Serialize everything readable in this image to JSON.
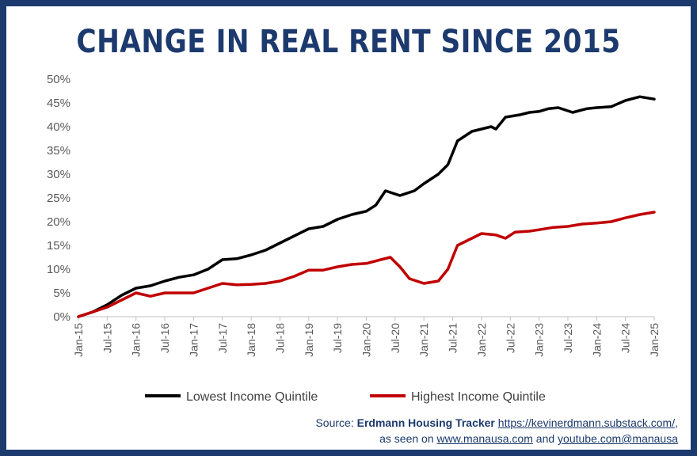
{
  "chart_data": {
    "type": "line",
    "title": "CHANGE IN REAL RENT SINCE 2015",
    "xlabel": "",
    "ylabel": "",
    "x_ticks": [
      "Jan-15",
      "Jul-15",
      "Jan-16",
      "Jul-16",
      "Jan-17",
      "Jul-17",
      "Jan-18",
      "Jul-18",
      "Jan-19",
      "Jul-19",
      "Jan-20",
      "Jul-20",
      "Jan-21",
      "Jul-21",
      "Jan-22",
      "Jul-22",
      "Jan-23",
      "Jul-23",
      "Jan-24",
      "Jul-24",
      "Jan-25"
    ],
    "y_ticks": [
      "0%",
      "5%",
      "10%",
      "15%",
      "20%",
      "25%",
      "30%",
      "35%",
      "40%",
      "45%",
      "50%"
    ],
    "ylim": [
      0,
      50
    ],
    "grid": false,
    "legend_position": "bottom",
    "series": [
      {
        "name": "Lowest Income Quintile",
        "color": "#000000",
        "points": [
          [
            "Jan-15",
            0
          ],
          [
            "Apr-15",
            1
          ],
          [
            "Jul-15",
            2.5
          ],
          [
            "Oct-15",
            4.5
          ],
          [
            "Jan-16",
            6
          ],
          [
            "Apr-16",
            6.5
          ],
          [
            "Jul-16",
            7.5
          ],
          [
            "Oct-16",
            8.3
          ],
          [
            "Jan-17",
            8.8
          ],
          [
            "Apr-17",
            10
          ],
          [
            "Jul-17",
            12
          ],
          [
            "Oct-17",
            12.2
          ],
          [
            "Jan-18",
            13
          ],
          [
            "Apr-18",
            14
          ],
          [
            "Jul-18",
            15.5
          ],
          [
            "Oct-18",
            17
          ],
          [
            "Jan-19",
            18.5
          ],
          [
            "Apr-19",
            19
          ],
          [
            "Jul-19",
            20.5
          ],
          [
            "Oct-19",
            21.5
          ],
          [
            "Jan-20",
            22.2
          ],
          [
            "Mar-20",
            23.5
          ],
          [
            "May-20",
            26.5
          ],
          [
            "Aug-20",
            25.5
          ],
          [
            "Nov-20",
            26.5
          ],
          [
            "Jan-21",
            28
          ],
          [
            "Apr-21",
            30
          ],
          [
            "Jun-21",
            32
          ],
          [
            "Aug-21",
            37
          ],
          [
            "Nov-21",
            39
          ],
          [
            "Jan-22",
            39.5
          ],
          [
            "Mar-22",
            40
          ],
          [
            "Apr-22",
            39.5
          ],
          [
            "Jun-22",
            42
          ],
          [
            "Sep-22",
            42.5
          ],
          [
            "Nov-22",
            43
          ],
          [
            "Jan-23",
            43.2
          ],
          [
            "Mar-23",
            43.8
          ],
          [
            "May-23",
            44
          ],
          [
            "Aug-23",
            43
          ],
          [
            "Nov-23",
            43.8
          ],
          [
            "Jan-24",
            44
          ],
          [
            "Apr-24",
            44.2
          ],
          [
            "Jul-24",
            45.5
          ],
          [
            "Oct-24",
            46.3
          ],
          [
            "Jan-25",
            45.8
          ]
        ]
      },
      {
        "name": "Highest Income Quintile",
        "color": "#c00000",
        "points": [
          [
            "Jan-15",
            0
          ],
          [
            "Apr-15",
            1
          ],
          [
            "Jul-15",
            2
          ],
          [
            "Oct-15",
            3.5
          ],
          [
            "Jan-16",
            5
          ],
          [
            "Apr-16",
            4.3
          ],
          [
            "Jul-16",
            5
          ],
          [
            "Oct-16",
            5
          ],
          [
            "Jan-17",
            5
          ],
          [
            "Apr-17",
            6
          ],
          [
            "Jul-17",
            7
          ],
          [
            "Oct-17",
            6.7
          ],
          [
            "Jan-18",
            6.8
          ],
          [
            "Apr-18",
            7
          ],
          [
            "Jul-18",
            7.5
          ],
          [
            "Oct-18",
            8.5
          ],
          [
            "Jan-19",
            9.8
          ],
          [
            "Apr-19",
            9.8
          ],
          [
            "Jul-19",
            10.5
          ],
          [
            "Oct-19",
            11
          ],
          [
            "Jan-20",
            11.2
          ],
          [
            "Apr-20",
            12
          ],
          [
            "Jun-20",
            12.5
          ],
          [
            "Aug-20",
            10.5
          ],
          [
            "Oct-20",
            8
          ],
          [
            "Jan-21",
            7
          ],
          [
            "Apr-21",
            7.5
          ],
          [
            "Jun-21",
            10
          ],
          [
            "Aug-21",
            15
          ],
          [
            "Nov-21",
            16.5
          ],
          [
            "Jan-22",
            17.5
          ],
          [
            "Apr-22",
            17.2
          ],
          [
            "Jun-22",
            16.5
          ],
          [
            "Aug-22",
            17.8
          ],
          [
            "Nov-22",
            18
          ],
          [
            "Jan-23",
            18.3
          ],
          [
            "Apr-23",
            18.8
          ],
          [
            "Jul-23",
            19
          ],
          [
            "Oct-23",
            19.5
          ],
          [
            "Jan-24",
            19.7
          ],
          [
            "Apr-24",
            20
          ],
          [
            "Jul-24",
            20.8
          ],
          [
            "Oct-24",
            21.5
          ],
          [
            "Jan-25",
            22
          ]
        ]
      }
    ]
  },
  "source": {
    "prefix": "Source: ",
    "tracker_name": "Erdmann Housing Tracker",
    "tracker_url": "https://kevinerdmann.substack.com/",
    "line1_suffix": ",",
    "line2_prefix": "as seen on ",
    "site_url": "www.manausa.com",
    "line2_mid": " and ",
    "youtube": "youtube.com@manausa"
  }
}
